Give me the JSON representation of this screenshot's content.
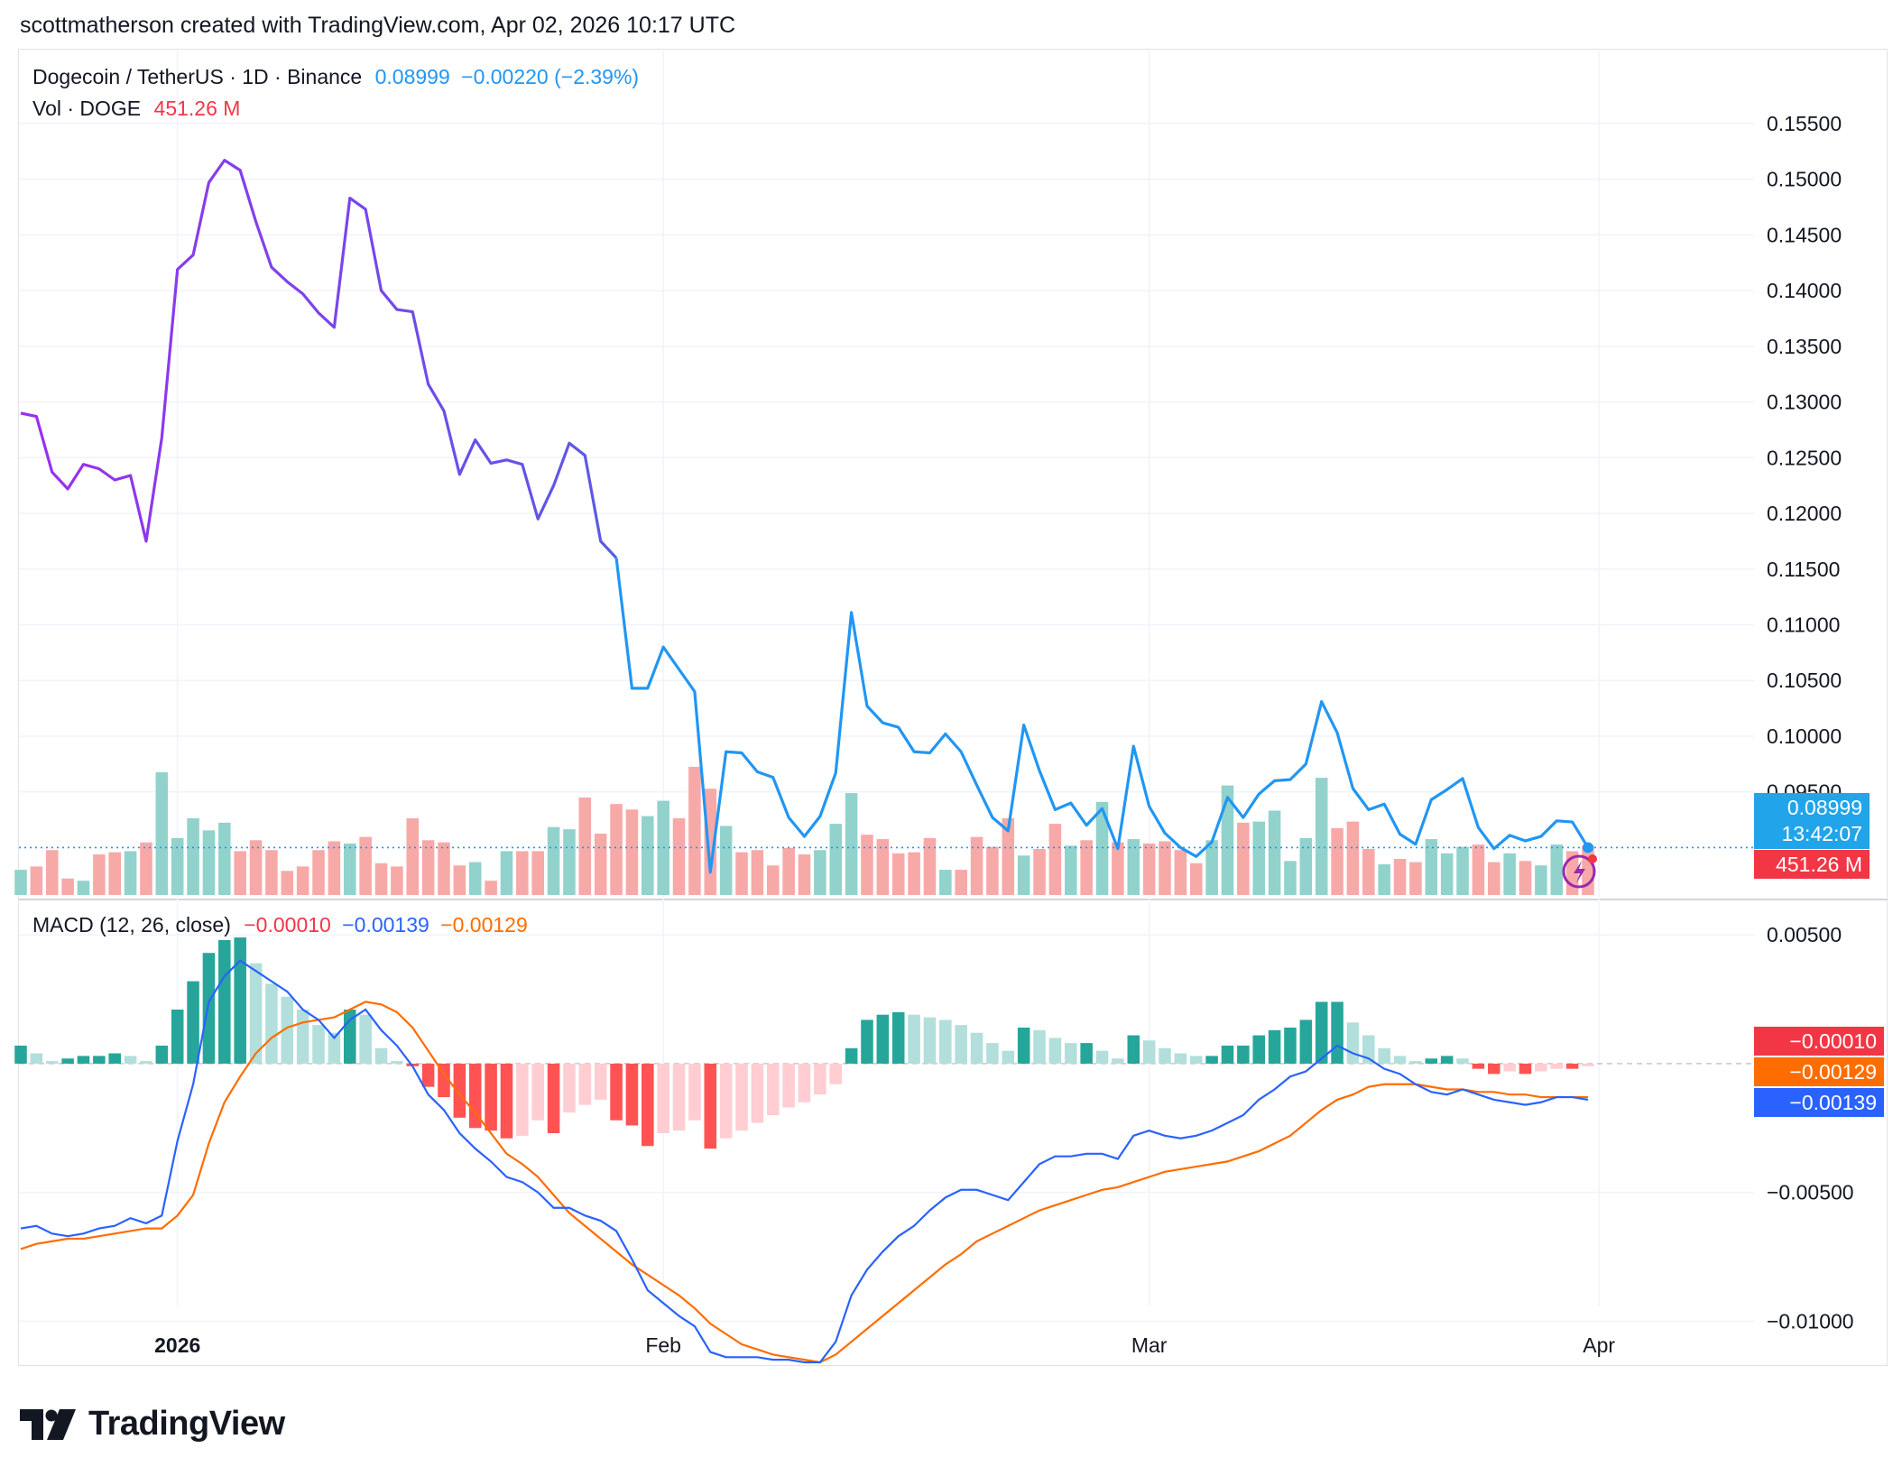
{
  "header": {
    "attribution": "scottmatherson created with TradingView.com, Apr 02, 2026 10:17 UTC"
  },
  "legend": {
    "symbol": "Dogecoin / TetherUS · 1D · Binance",
    "last": "0.08999",
    "change": "−0.00220 (−2.39%)",
    "vol_label": "Vol · DOGE",
    "vol_value": "451.26 M",
    "macd_label": "MACD (12, 26, close)",
    "macd_hist": "−0.00010",
    "macd_line": "−0.00139",
    "macd_signal": "−0.00129"
  },
  "tags": {
    "price": "0.08999",
    "countdown": "13:42:07",
    "volume": "451.26 M",
    "hist": "−0.00010",
    "signal": "−0.00129",
    "macd": "−0.00139"
  },
  "colors": {
    "price_early": "#9c2ef0",
    "price_late": "#2196f3",
    "up": "#26a69a",
    "down": "#f23645",
    "up_light": "#26a69a",
    "down_light": "#f7a1a7",
    "macd": "#2962ff",
    "signal": "#ff6d00",
    "tag_blue": "#22a4ea"
  },
  "branding": {
    "logo_icon": "tradingview-logo-icon",
    "logo_text": "TradingView"
  },
  "chart_data": [
    {
      "type": "line",
      "title": "Dogecoin / TetherUS · 1D · Binance",
      "x_labels": [
        "2026",
        "Feb",
        "Mar",
        "Apr"
      ],
      "ylim": [
        0.0855,
        0.1575
      ],
      "y_ticks": [
        "0.15500",
        "0.15000",
        "0.14500",
        "0.14000",
        "0.13500",
        "0.13000",
        "0.12500",
        "0.12000",
        "0.11500",
        "0.11000",
        "0.10500",
        "0.10000",
        "0.09500"
      ],
      "series": [
        {
          "values": [
            0.129,
            0.1287,
            0.1237,
            0.1222,
            0.1244,
            0.124,
            0.123,
            0.1234,
            0.1175,
            0.1268,
            0.1419,
            0.1432,
            0.1497,
            0.1517,
            0.1508,
            0.1462,
            0.1421,
            0.1408,
            0.1397,
            0.138,
            0.1367,
            0.1483,
            0.1473,
            0.14,
            0.1383,
            0.1381,
            0.1316,
            0.1292,
            0.1235,
            0.1266,
            0.1245,
            0.1248,
            0.1244,
            0.1195,
            0.1225,
            0.1263,
            0.1252,
            0.1175,
            0.116,
            0.1043,
            0.1043,
            0.108,
            0.106,
            0.104,
            0.0878,
            0.0986,
            0.0985,
            0.0968,
            0.0963,
            0.0927,
            0.091,
            0.0928,
            0.0967,
            0.1111,
            0.1027,
            0.1012,
            0.1008,
            0.0986,
            0.0985,
            0.1002,
            0.0986,
            0.0956,
            0.0927,
            0.0915,
            0.101,
            0.0969,
            0.0934,
            0.094,
            0.092,
            0.0935,
            0.0899,
            0.0991,
            0.0937,
            0.0913,
            0.09,
            0.0892,
            0.0905,
            0.0945,
            0.0927,
            0.0948,
            0.096,
            0.0961,
            0.0975,
            0.1031,
            0.1003,
            0.0953,
            0.0934,
            0.0939,
            0.0912,
            0.0903,
            0.0943,
            0.0952,
            0.0962,
            0.0918,
            0.0899,
            0.0911,
            0.0906,
            0.091,
            0.0924,
            0.0923,
            0.09
          ]
        }
      ]
    },
    {
      "type": "bar",
      "title": "Vol · DOGE",
      "series": [
        {
          "values": [
            230,
            260,
            410,
            150,
            130,
            370,
            390,
            400,
            480,
            1120,
            520,
            700,
            590,
            660,
            400,
            500,
            410,
            220,
            260,
            410,
            490,
            470,
            530,
            290,
            260,
            700,
            500,
            480,
            270,
            300,
            130,
            400,
            400,
            400,
            620,
            600,
            890,
            560,
            830,
            780,
            720,
            860,
            700,
            1170,
            970,
            630,
            390,
            410,
            270,
            430,
            370,
            410,
            650,
            930,
            550,
            510,
            380,
            390,
            520,
            230,
            230,
            530,
            440,
            700,
            360,
            420,
            650,
            450,
            500,
            850,
            480,
            510,
            470,
            490,
            410,
            290,
            500,
            1000,
            660,
            670,
            770,
            310,
            520,
            1070,
            610,
            670,
            420,
            280,
            330,
            300,
            510,
            380,
            440,
            460,
            300,
            380,
            310,
            270,
            460,
            400,
            451
          ]
        }
      ]
    },
    {
      "type": "bar",
      "title": "MACD (12, 26, close)",
      "ylim": [
        -0.0116,
        0.0062
      ],
      "y_ticks": [
        "0.00500",
        "−0.00500",
        "−0.01000"
      ],
      "series": [
        {
          "name": "Histogram",
          "values": [
            0.0007,
            0.0004,
            0.0001,
            0.0002,
            0.0003,
            0.0003,
            0.0004,
            0.0003,
            0.0001,
            0.0007,
            0.0021,
            0.0032,
            0.0043,
            0.0048,
            0.0049,
            0.0039,
            0.0031,
            0.0026,
            0.0021,
            0.0015,
            0.0012,
            0.0021,
            0.0019,
            0.0006,
            0.0001,
            -0.0001,
            -0.0009,
            -0.0013,
            -0.0021,
            -0.0025,
            -0.0026,
            -0.0029,
            -0.0028,
            -0.0022,
            -0.0027,
            -0.0019,
            -0.0016,
            -0.0014,
            -0.0022,
            -0.0024,
            -0.0032,
            -0.0027,
            -0.0026,
            -0.0022,
            -0.0033,
            -0.0029,
            -0.0026,
            -0.0023,
            -0.002,
            -0.0017,
            -0.0015,
            -0.0012,
            -0.0008,
            0.0006,
            0.0017,
            0.0019,
            0.002,
            0.0019,
            0.0018,
            0.0017,
            0.0015,
            0.0012,
            0.0008,
            0.0005,
            0.0014,
            0.0013,
            0.001,
            0.0008,
            0.0008,
            0.0005,
            0.0002,
            0.0011,
            0.0009,
            0.0006,
            0.0004,
            0.0003,
            0.0003,
            0.0007,
            0.0007,
            0.0011,
            0.0013,
            0.0014,
            0.0017,
            0.0024,
            0.0024,
            0.0016,
            0.0011,
            0.0006,
            0.0003,
            0.0001,
            0.0002,
            0.0003,
            0.0002,
            -0.0002,
            -0.0004,
            -0.0003,
            -0.0004,
            -0.0003,
            -0.0002,
            -0.0002,
            -0.0001
          ]
        },
        {
          "name": "MACD",
          "values": [
            -0.0064,
            -0.0063,
            -0.0066,
            -0.0067,
            -0.0066,
            -0.0064,
            -0.0063,
            -0.006,
            -0.0062,
            -0.0059,
            -0.003,
            -0.0008,
            0.0024,
            0.0034,
            0.004,
            0.0036,
            0.0032,
            0.0028,
            0.0021,
            0.0017,
            0.001,
            0.0017,
            0.0021,
            0.0013,
            0.0007,
            -0.0001,
            -0.0012,
            -0.0018,
            -0.0027,
            -0.0033,
            -0.0038,
            -0.0044,
            -0.0046,
            -0.005,
            -0.0056,
            -0.0056,
            -0.0059,
            -0.0061,
            -0.0065,
            -0.0076,
            -0.0088,
            -0.0093,
            -0.0098,
            -0.0102,
            -0.0112,
            -0.0114,
            -0.0114,
            -0.0114,
            -0.0115,
            -0.0115,
            -0.0116,
            -0.0116,
            -0.0108,
            -0.009,
            -0.008,
            -0.0073,
            -0.0067,
            -0.0063,
            -0.0057,
            -0.0052,
            -0.0049,
            -0.0049,
            -0.0051,
            -0.0053,
            -0.0046,
            -0.0039,
            -0.0036,
            -0.0036,
            -0.0035,
            -0.0035,
            -0.0037,
            -0.0028,
            -0.0026,
            -0.0028,
            -0.0029,
            -0.0028,
            -0.0026,
            -0.0023,
            -0.002,
            -0.0014,
            -0.001,
            -0.0005,
            -0.0003,
            0.0002,
            0.0007,
            0.0004,
            0.0002,
            -0.0002,
            -0.0004,
            -0.0008,
            -0.0011,
            -0.0012,
            -0.001,
            -0.0012,
            -0.0014,
            -0.0015,
            -0.0016,
            -0.0015,
            -0.0013,
            -0.0013,
            -0.0014
          ]
        },
        {
          "name": "Signal",
          "values": [
            -0.0072,
            -0.007,
            -0.0069,
            -0.0068,
            -0.0068,
            -0.0067,
            -0.0066,
            -0.0065,
            -0.0064,
            -0.0064,
            -0.0059,
            -0.0051,
            -0.0031,
            -0.0015,
            -0.0005,
            0.0004,
            0.001,
            0.0014,
            0.0016,
            0.0017,
            0.0018,
            0.0021,
            0.0024,
            0.0023,
            0.002,
            0.0014,
            0.0005,
            -0.0004,
            -0.0012,
            -0.0019,
            -0.0027,
            -0.0035,
            -0.0039,
            -0.0044,
            -0.0051,
            -0.0058,
            -0.0063,
            -0.0068,
            -0.0073,
            -0.0078,
            -0.0082,
            -0.0086,
            -0.009,
            -0.0095,
            -0.0101,
            -0.0105,
            -0.0109,
            -0.0111,
            -0.0113,
            -0.0114,
            -0.0115,
            -0.0116,
            -0.0113,
            -0.0108,
            -0.0103,
            -0.0098,
            -0.0093,
            -0.0088,
            -0.0083,
            -0.0078,
            -0.0074,
            -0.0069,
            -0.0066,
            -0.0063,
            -0.006,
            -0.0057,
            -0.0055,
            -0.0053,
            -0.0051,
            -0.0049,
            -0.0048,
            -0.0046,
            -0.0044,
            -0.0042,
            -0.0041,
            -0.004,
            -0.0039,
            -0.0038,
            -0.0036,
            -0.0034,
            -0.0031,
            -0.0028,
            -0.0023,
            -0.0018,
            -0.0014,
            -0.0012,
            -0.0009,
            -0.0008,
            -0.0008,
            -0.0008,
            -0.0009,
            -0.001,
            -0.001,
            -0.0011,
            -0.0011,
            -0.0012,
            -0.0012,
            -0.0013,
            -0.0013,
            -0.0013,
            -0.0013
          ]
        }
      ]
    }
  ]
}
